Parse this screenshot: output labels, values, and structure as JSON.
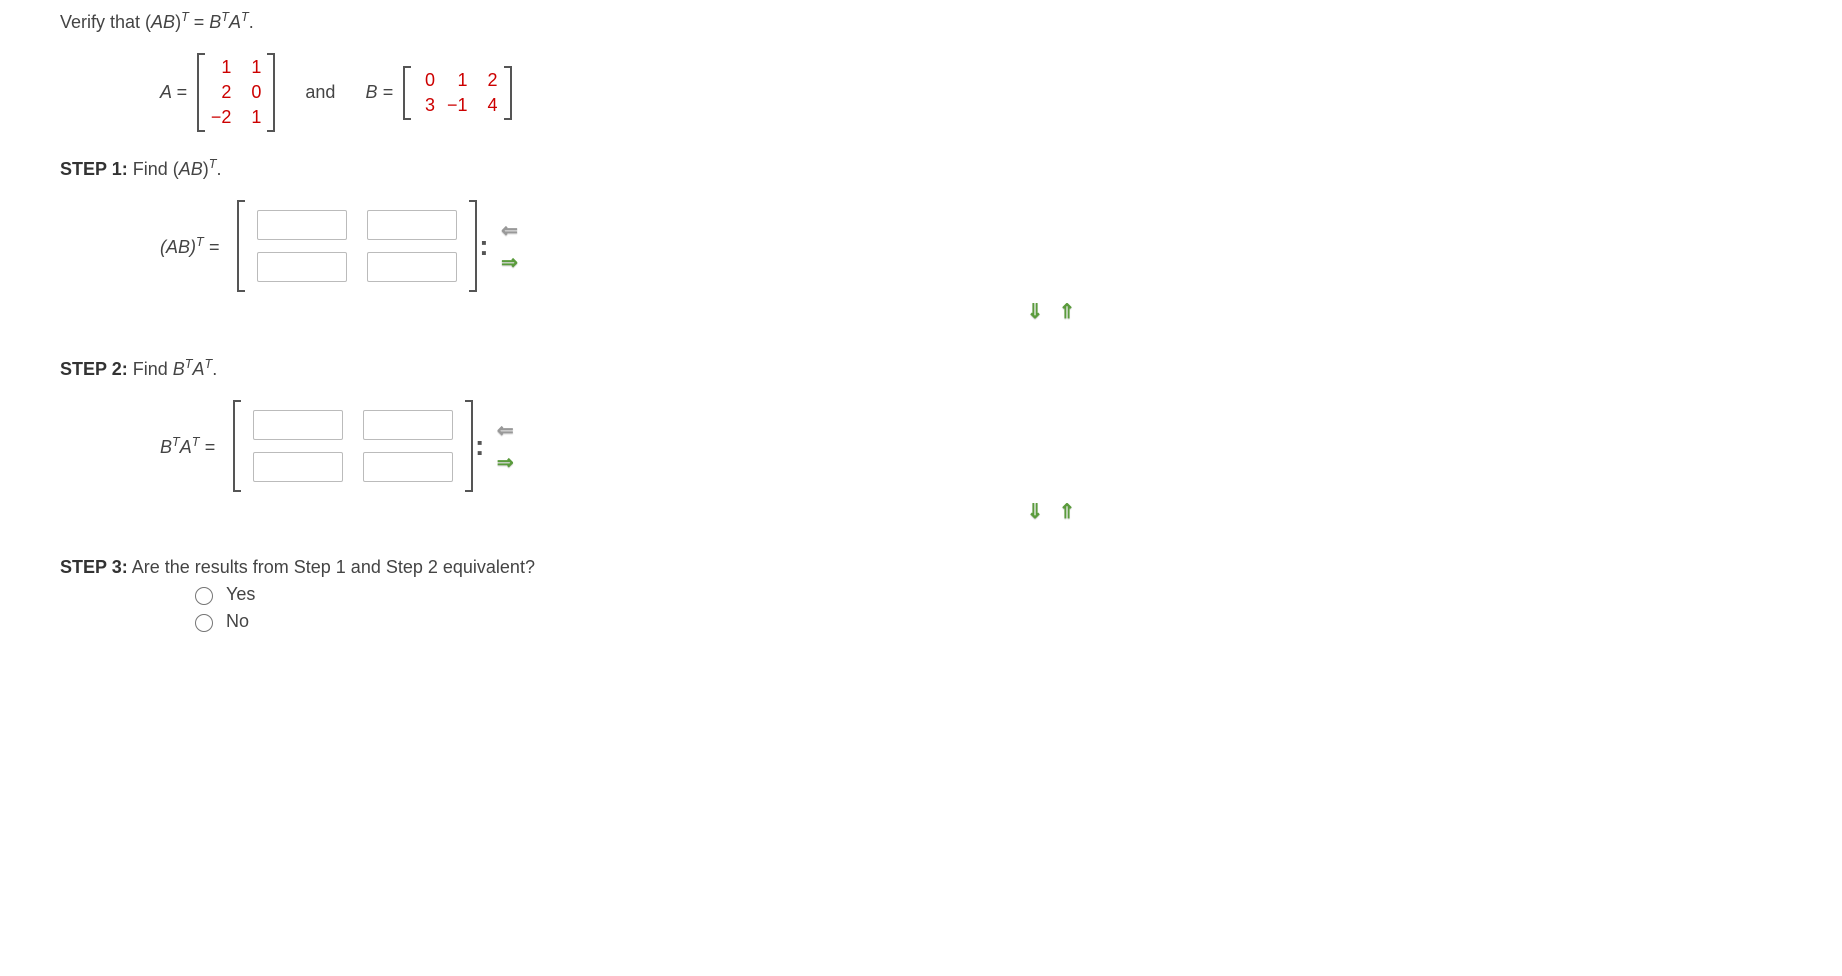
{
  "question": {
    "prefix": "Verify that  (",
    "ab": "AB",
    "rparen_t_eq": ")",
    "t": "T",
    "eq": " = ",
    "b": "B",
    "a": "A",
    "period": "."
  },
  "matrices": {
    "A_label": "A =",
    "A": [
      "1",
      "1",
      "2",
      "0",
      "−2",
      "1"
    ],
    "and": "and",
    "B_label": "B =",
    "B": [
      "0",
      "1",
      "2",
      "3",
      "−1",
      "4"
    ]
  },
  "step1": {
    "label": "STEP 1:",
    "text_prefix": " Find (",
    "ab": "AB",
    "rparen": ")",
    "t": "T",
    "period": ".",
    "answer_label_prefix": "(",
    "answer_label_ab": "AB",
    "answer_label_rparen": ")",
    "answer_label_t": "T",
    "answer_label_eq": " ="
  },
  "step2": {
    "label": "STEP 2:",
    "text_prefix": " Find ",
    "b": "B",
    "t1": "T",
    "a": "A",
    "t2": "T",
    "period": ".",
    "answer_b": "B",
    "answer_t1": "T",
    "answer_a": "A",
    "answer_t2": "T",
    "answer_eq": " ="
  },
  "step3": {
    "label": "STEP 3:",
    "text": " Are the results from Step 1 and Step 2 equivalent?",
    "yes": "Yes",
    "no": "No"
  },
  "arrows": {
    "left": "⇐",
    "right": "⇒",
    "down": "⇓",
    "up": "⇑"
  },
  "colors": {
    "matrix_value": "#c00",
    "arrow_green": "#5a9b3c",
    "text": "#444"
  }
}
